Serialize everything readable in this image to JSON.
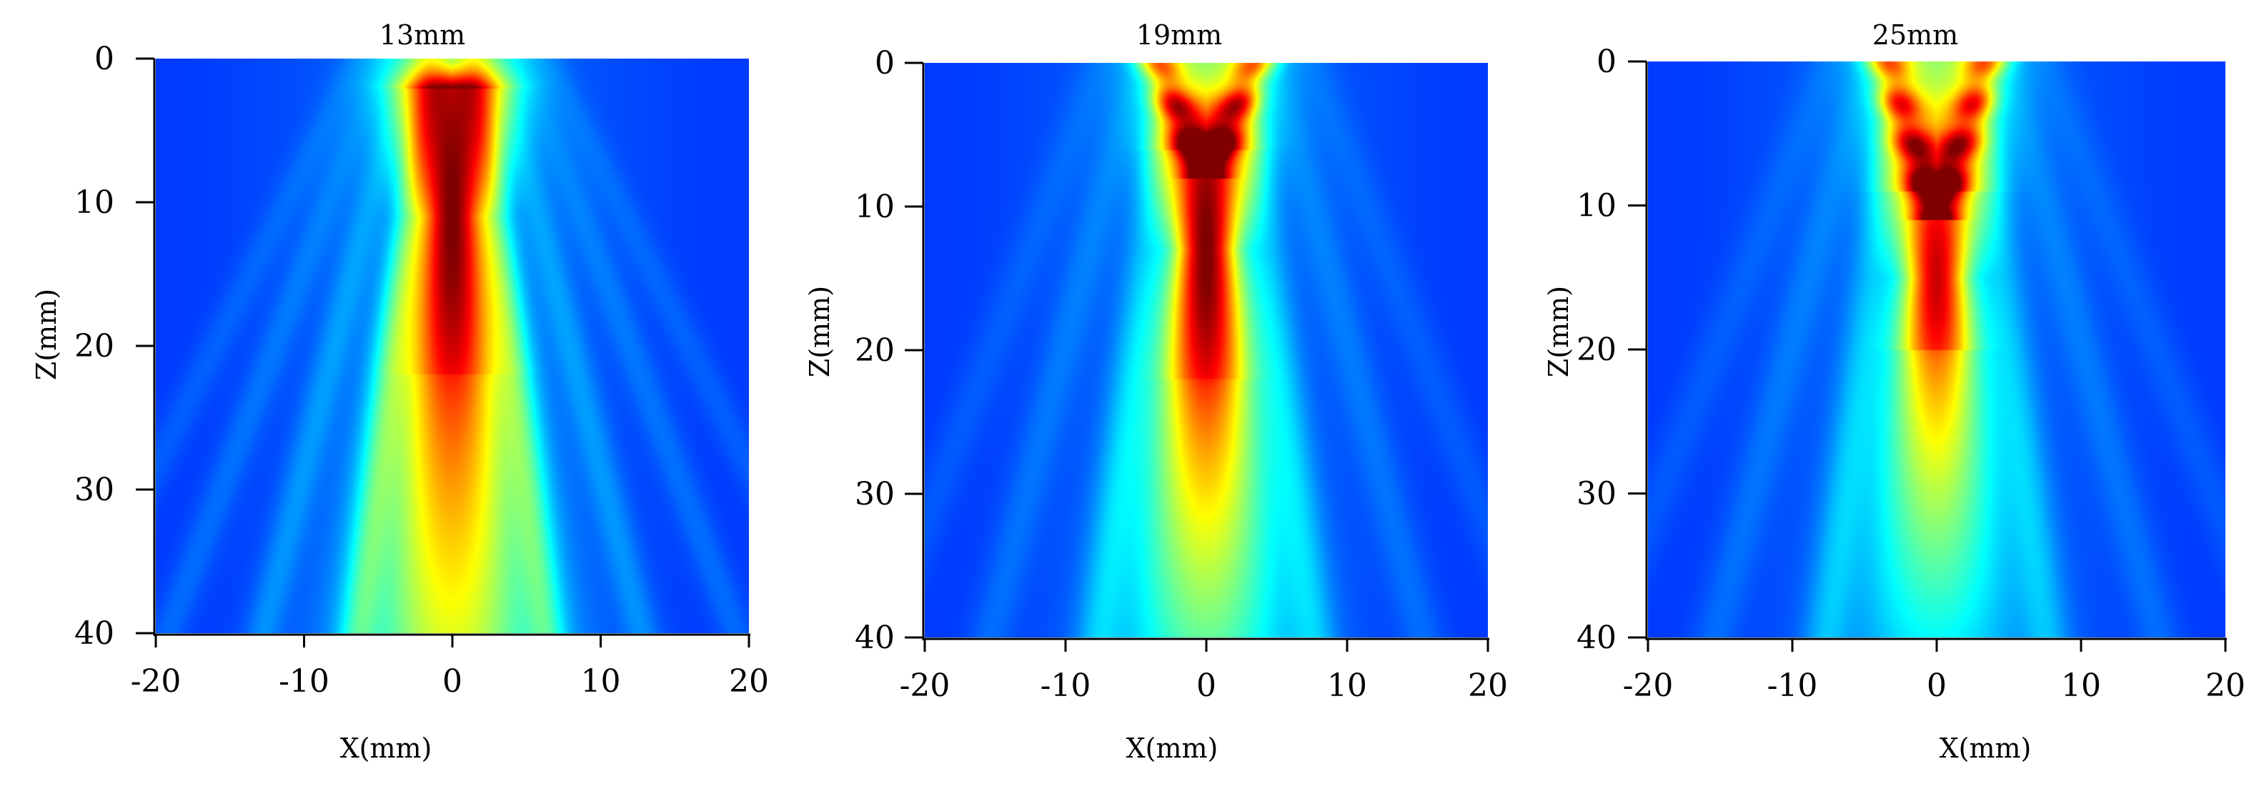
{
  "chart_data": [
    {
      "type": "heatmap",
      "title": "13mm",
      "xlabel": "X(mm)",
      "ylabel": "Z(mm)",
      "xlim": [
        -20,
        20
      ],
      "ylim": [
        0,
        40
      ],
      "y_inverted": true,
      "x_ticks": [
        "-20",
        "-10",
        "0",
        "10",
        "20"
      ],
      "y_ticks": [
        "0",
        "10",
        "20",
        "30",
        "40"
      ],
      "colormap": "jet",
      "colormap_colors": [
        "#00007f",
        "#0000ff",
        "#00ffff",
        "#ffff00",
        "#ff0000",
        "#7f0000"
      ],
      "beam": {
        "focus_z_mm": 11,
        "peak_start_z_mm": 2,
        "peak_end_z_mm": 22,
        "peak_intensity": 0.95,
        "far_intensity": 0.45,
        "far_z_mm": 40,
        "near_pattern": "converging side lobes"
      }
    },
    {
      "type": "heatmap",
      "title": "19mm",
      "xlabel": "X(mm)",
      "ylabel": "Z(mm)",
      "xlim": [
        -20,
        20
      ],
      "ylim": [
        0,
        40
      ],
      "y_inverted": true,
      "x_ticks": [
        "-20",
        "-10",
        "0",
        "10",
        "20"
      ],
      "y_ticks": [
        "0",
        "10",
        "20",
        "30",
        "40"
      ],
      "colormap": "jet",
      "colormap_colors": [
        "#00007f",
        "#0000ff",
        "#00ffff",
        "#ffff00",
        "#ff0000",
        "#7f0000"
      ],
      "beam": {
        "focus_z_mm": 13,
        "peak_start_z_mm": 6,
        "peak_end_z_mm": 22,
        "peak_intensity": 0.95,
        "far_intensity": 0.3,
        "far_z_mm": 40,
        "near_pattern": "interference lobes above focus"
      }
    },
    {
      "type": "heatmap",
      "title": "25mm",
      "xlabel": "X(mm)",
      "ylabel": "Z(mm)",
      "xlim": [
        -20,
        20
      ],
      "ylim": [
        0,
        40
      ],
      "y_inverted": true,
      "x_ticks": [
        "-20",
        "-10",
        "0",
        "10",
        "20"
      ],
      "y_ticks": [
        "0",
        "10",
        "20",
        "30",
        "40"
      ],
      "colormap": "jet",
      "colormap_colors": [
        "#00007f",
        "#0000ff",
        "#00ffff",
        "#ffff00",
        "#ff0000",
        "#7f0000"
      ],
      "beam": {
        "focus_z_mm": 15,
        "peak_start_z_mm": 9,
        "peak_end_z_mm": 20,
        "peak_intensity": 0.85,
        "far_intensity": 0.18,
        "far_z_mm": 40,
        "near_pattern": "interference lobes above focus"
      }
    }
  ]
}
